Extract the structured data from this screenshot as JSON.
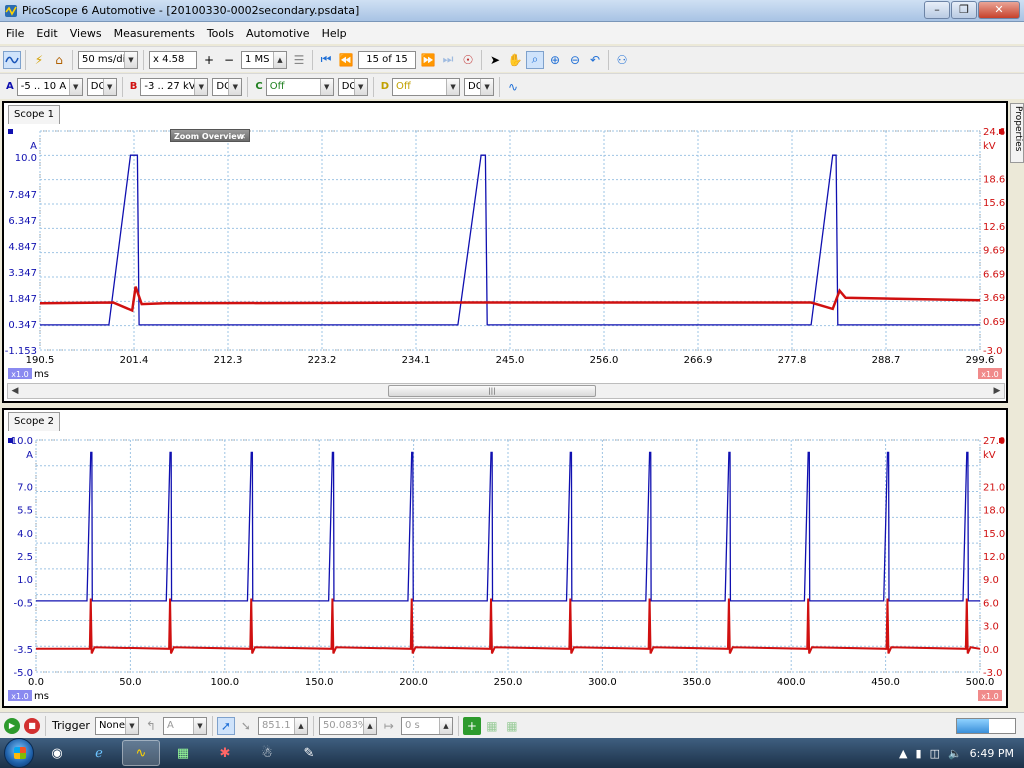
{
  "window": {
    "title": "PicoScope 6 Automotive - [20100330-0002secondary.psdata]"
  },
  "menu": {
    "items": [
      "File",
      "Edit",
      "Views",
      "Measurements",
      "Tools",
      "Automotive",
      "Help"
    ]
  },
  "toolbar": {
    "timebase": "50 ms/div",
    "zoom": "x 4.58",
    "samples": "1 MS",
    "buffer": "15 of 15"
  },
  "channels": {
    "a": {
      "letter": "A",
      "range": "-5 .. 10 A",
      "coupling": "DC",
      "color": "#1010b0"
    },
    "b": {
      "letter": "B",
      "range": "-3 .. 27 kV",
      "coupling": "DC",
      "color": "#d01010"
    },
    "c": {
      "letter": "C",
      "range": "Off",
      "coupling": "DC",
      "color": "#208020"
    },
    "d": {
      "letter": "D",
      "range": "Off",
      "coupling": "DC",
      "color": "#c0a000"
    }
  },
  "scope1": {
    "tab": "Scope 1",
    "zoom_overview_label": "Zoom Overview",
    "left_unit": "A",
    "right_unit": "kV",
    "x_unit": "ms",
    "left_scale_label": "x1.0",
    "right_scale_label": "x1.0",
    "chart_data": {
      "type": "line",
      "x_ticks": [
        "190.5",
        "201.4",
        "212.3",
        "223.2",
        "234.1",
        "245.0",
        "256.0",
        "266.9",
        "277.8",
        "288.7",
        "299.6"
      ],
      "y_left_ticks": [
        "10.0",
        "7.847",
        "6.347",
        "4.847",
        "3.347",
        "1.847",
        "0.347",
        "-1.153"
      ],
      "y_right_ticks": [
        "24.69",
        "18.69",
        "15.69",
        "12.69",
        "9.691",
        "6.691",
        "3.691",
        "0.691",
        "-3.0"
      ],
      "xlim": [
        190.5,
        299.6
      ],
      "ylim_left": [
        -1.153,
        11.5
      ],
      "ylim_right": [
        -3.0,
        24.69
      ],
      "series": [
        {
          "name": "A",
          "axis": "left",
          "color": "#1010b0",
          "x": [
            190.5,
            198.5,
            201.0,
            201.8,
            202.0,
            239.0,
            241.7,
            242.2,
            242.4,
            280.0,
            282.5,
            282.9,
            283.1,
            299.6
          ],
          "y": [
            0.3,
            0.3,
            10.1,
            10.1,
            0.3,
            0.3,
            10.1,
            10.1,
            0.3,
            0.3,
            10.1,
            10.1,
            0.3,
            0.3
          ]
        },
        {
          "name": "B",
          "axis": "right",
          "color": "#d01010",
          "x": [
            190.5,
            199.0,
            201.2,
            201.6,
            202.3,
            205.0,
            240.0,
            280.0,
            282.5,
            283.3,
            284.0,
            299.6
          ],
          "y": [
            2.9,
            3.0,
            2.0,
            5.0,
            2.8,
            2.9,
            3.0,
            3.0,
            2.2,
            4.5,
            3.6,
            3.3
          ]
        }
      ]
    }
  },
  "scope2": {
    "tab": "Scope 2",
    "left_unit": "A",
    "right_unit": "kV",
    "x_unit": "ms",
    "left_scale_label": "x1.0",
    "right_scale_label": "x1.0",
    "chart_data": {
      "type": "line",
      "x_ticks": [
        "0.0",
        "50.0",
        "100.0",
        "150.0",
        "200.0",
        "250.0",
        "300.0",
        "350.0",
        "400.0",
        "450.0",
        "500.0"
      ],
      "y_left_ticks": [
        "10.0",
        "7.0",
        "5.5",
        "4.0",
        "2.5",
        "1.0",
        "-0.5",
        "-3.5",
        "-5.0"
      ],
      "y_right_ticks": [
        "27.0",
        "21.0",
        "18.0",
        "15.0",
        "12.0",
        "9.0",
        "6.0",
        "3.0",
        "0.0",
        "-3.0"
      ],
      "xlim": [
        0,
        500
      ],
      "ylim_left": [
        -5.0,
        10.0
      ],
      "ylim_right": [
        -3.0,
        27.0
      ],
      "spark_times": [
        29,
        71,
        114,
        157,
        199,
        241,
        283,
        325,
        367,
        409,
        451,
        493
      ],
      "series": [
        {
          "name": "A",
          "axis": "left",
          "color": "#1010b0",
          "pulse_high": 9.2,
          "baseline": -0.4
        },
        {
          "name": "B",
          "axis": "right",
          "color": "#d01010",
          "baseline": 0.0,
          "spike": 6.5
        }
      ]
    }
  },
  "properties_label": "Properties",
  "trigger": {
    "label": "Trigger",
    "mode": "None",
    "channel": "A",
    "threshold": "851.1 ...",
    "pretrigger": "50.083%",
    "delay": "0 s"
  },
  "taskbar": {
    "time": "6:49 PM"
  }
}
